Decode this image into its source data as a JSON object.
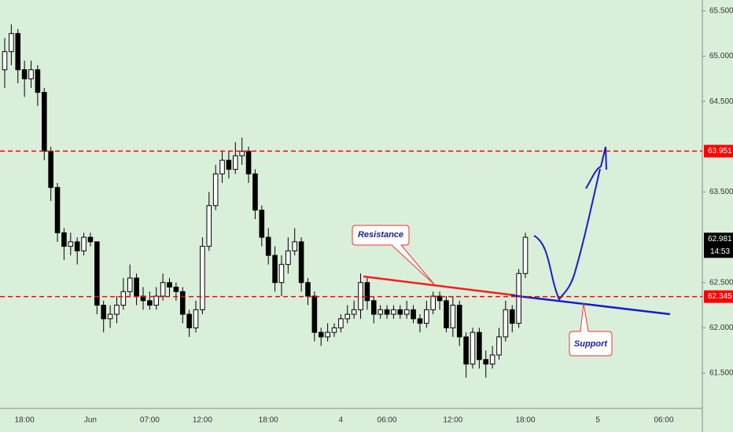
{
  "chart_data": {
    "type": "candlestick",
    "categories": [
      null,
      null,
      null,
      "18:00",
      null,
      null,
      null,
      null,
      null,
      null,
      null,
      null,
      null,
      "Jun",
      null,
      null,
      null,
      null,
      null,
      null,
      null,
      null,
      "07:00",
      null,
      null,
      null,
      null,
      null,
      null,
      null,
      "12:00",
      null,
      null,
      null,
      null,
      null,
      null,
      null,
      null,
      null,
      "18:00",
      null,
      null,
      null,
      null,
      null,
      null,
      null,
      null,
      null,
      null,
      "4",
      null,
      null,
      null,
      null,
      null,
      null,
      "06:00",
      null,
      null,
      null,
      null,
      null,
      null,
      null,
      null,
      null,
      "12:00",
      null,
      null,
      null,
      null,
      null,
      null,
      null,
      null,
      null,
      null,
      "18:00",
      null,
      null,
      null,
      null,
      null,
      null,
      null,
      null,
      null,
      null,
      "5",
      null,
      null,
      null,
      null,
      null,
      null,
      null,
      null,
      null,
      "06:00"
    ],
    "open": [
      64.85,
      65.05,
      65.25,
      64.85,
      64.75,
      64.85,
      64.6,
      63.95,
      63.55,
      63.05,
      62.9,
      62.95,
      62.85,
      63.0,
      62.95,
      62.25,
      62.1,
      62.15,
      62.25,
      62.4,
      62.55,
      62.35,
      62.3,
      62.25,
      62.35,
      62.5,
      62.45,
      62.4,
      62.15,
      62.0,
      62.2,
      62.9,
      63.35,
      63.7,
      63.85,
      63.75,
      63.9,
      63.95,
      63.7,
      63.3,
      63.0,
      62.8,
      62.5,
      62.7,
      62.85,
      62.95,
      62.5,
      62.35,
      61.95,
      61.9,
      61.95,
      62.0,
      62.1,
      62.15,
      62.2,
      62.5,
      62.3,
      62.15,
      62.2,
      62.15,
      62.2,
      62.15,
      62.2,
      62.1,
      62.05,
      62.2,
      62.35,
      62.3,
      62.0,
      62.25,
      61.9,
      61.6,
      61.95,
      61.65,
      61.6,
      61.7,
      61.9,
      62.2,
      62.05,
      62.6,
      null,
      null,
      null,
      null,
      null,
      null,
      null,
      null,
      null,
      null,
      null,
      null,
      null,
      null,
      null,
      null,
      null,
      null,
      null,
      null,
      null
    ],
    "high": [
      65.2,
      65.35,
      65.3,
      64.95,
      64.95,
      64.9,
      64.65,
      64.0,
      63.6,
      63.1,
      63.05,
      63.0,
      63.05,
      63.05,
      62.95,
      62.3,
      62.25,
      62.35,
      62.55,
      62.7,
      62.6,
      62.45,
      62.4,
      62.45,
      62.6,
      62.55,
      62.5,
      62.45,
      62.2,
      62.3,
      63.0,
      63.5,
      63.8,
      63.95,
      63.95,
      64.05,
      64.1,
      64.0,
      63.75,
      63.35,
      63.1,
      62.9,
      62.8,
      63.0,
      63.1,
      63.0,
      62.55,
      62.4,
      62.0,
      62.05,
      62.05,
      62.15,
      62.25,
      62.3,
      62.6,
      62.55,
      62.35,
      62.25,
      62.25,
      62.25,
      62.25,
      62.3,
      62.25,
      62.15,
      62.3,
      62.4,
      62.4,
      62.35,
      62.35,
      62.3,
      61.95,
      62.0,
      62.0,
      61.75,
      61.8,
      62.0,
      62.3,
      62.25,
      62.65,
      63.05,
      null,
      null,
      null,
      null,
      null,
      null,
      null,
      null,
      null,
      null,
      null,
      null,
      null,
      null,
      null,
      null,
      null,
      null,
      null,
      null,
      null
    ],
    "low": [
      64.65,
      64.9,
      64.7,
      64.55,
      64.65,
      64.45,
      63.85,
      63.4,
      62.95,
      62.75,
      62.8,
      62.7,
      62.8,
      62.9,
      62.15,
      61.95,
      62.0,
      62.05,
      62.2,
      62.35,
      62.25,
      62.2,
      62.2,
      62.2,
      62.3,
      62.35,
      62.3,
      62.05,
      61.9,
      61.95,
      62.15,
      62.85,
      63.3,
      63.6,
      63.65,
      63.7,
      63.8,
      63.6,
      63.2,
      62.9,
      62.7,
      62.4,
      62.35,
      62.6,
      62.8,
      62.4,
      62.25,
      61.85,
      61.8,
      61.85,
      61.9,
      61.95,
      62.05,
      62.1,
      62.1,
      62.2,
      62.05,
      62.1,
      62.1,
      62.1,
      62.1,
      62.1,
      62.05,
      61.95,
      62.0,
      62.15,
      62.2,
      61.95,
      61.9,
      61.8,
      61.45,
      61.55,
      61.55,
      61.45,
      61.55,
      61.65,
      61.85,
      61.95,
      62.0,
      62.55,
      null,
      null,
      null,
      null,
      null,
      null,
      null,
      null,
      null,
      null,
      null,
      null,
      null,
      null,
      null,
      null,
      null,
      null,
      null,
      null,
      null
    ],
    "close": [
      65.05,
      65.25,
      64.85,
      64.75,
      64.85,
      64.6,
      63.95,
      63.55,
      63.05,
      62.9,
      62.95,
      62.85,
      63.0,
      62.95,
      62.25,
      62.1,
      62.15,
      62.25,
      62.4,
      62.55,
      62.35,
      62.3,
      62.25,
      62.35,
      62.5,
      62.45,
      62.4,
      62.15,
      62.0,
      62.2,
      62.9,
      63.35,
      63.7,
      63.85,
      63.75,
      63.9,
      63.95,
      63.7,
      63.3,
      63.0,
      62.8,
      62.5,
      62.7,
      62.85,
      62.95,
      62.5,
      62.35,
      61.95,
      61.9,
      61.95,
      62.0,
      62.1,
      62.15,
      62.2,
      62.5,
      62.3,
      62.15,
      62.2,
      62.15,
      62.2,
      62.15,
      62.2,
      62.1,
      62.05,
      62.2,
      62.35,
      62.3,
      62.0,
      62.25,
      61.9,
      61.6,
      61.95,
      61.65,
      61.6,
      61.7,
      61.9,
      62.2,
      62.05,
      62.6,
      63.0,
      null,
      null,
      null,
      null,
      null,
      null,
      null,
      null,
      null,
      null,
      null,
      null,
      null,
      null,
      null,
      null,
      null,
      null,
      null,
      null,
      null
    ],
    "up_color": "#ffffff",
    "down_color": "#000000",
    "wick_color": "#000000",
    "ylim": [
      61.11,
      65.62
    ],
    "yticks": [
      {
        "value": 61.5,
        "label": "61.500"
      },
      {
        "value": 62.0,
        "label": "62.000"
      },
      {
        "value": 62.5,
        "label": "62.500"
      },
      {
        "value": 63.5,
        "label": "63.500"
      },
      {
        "value": 64.5,
        "label": "64.500"
      },
      {
        "value": 65.0,
        "label": "65.000"
      },
      {
        "value": 65.5,
        "label": "65.500"
      }
    ],
    "price_lines": [
      {
        "value": 63.951,
        "color": "#ff0000"
      },
      {
        "value": 62.345,
        "color": "#ff0000"
      }
    ],
    "last_price": {
      "value": 62.981,
      "countdown": "14:53"
    },
    "annotations": {
      "resistance": "Resistance",
      "support": "Support"
    }
  }
}
